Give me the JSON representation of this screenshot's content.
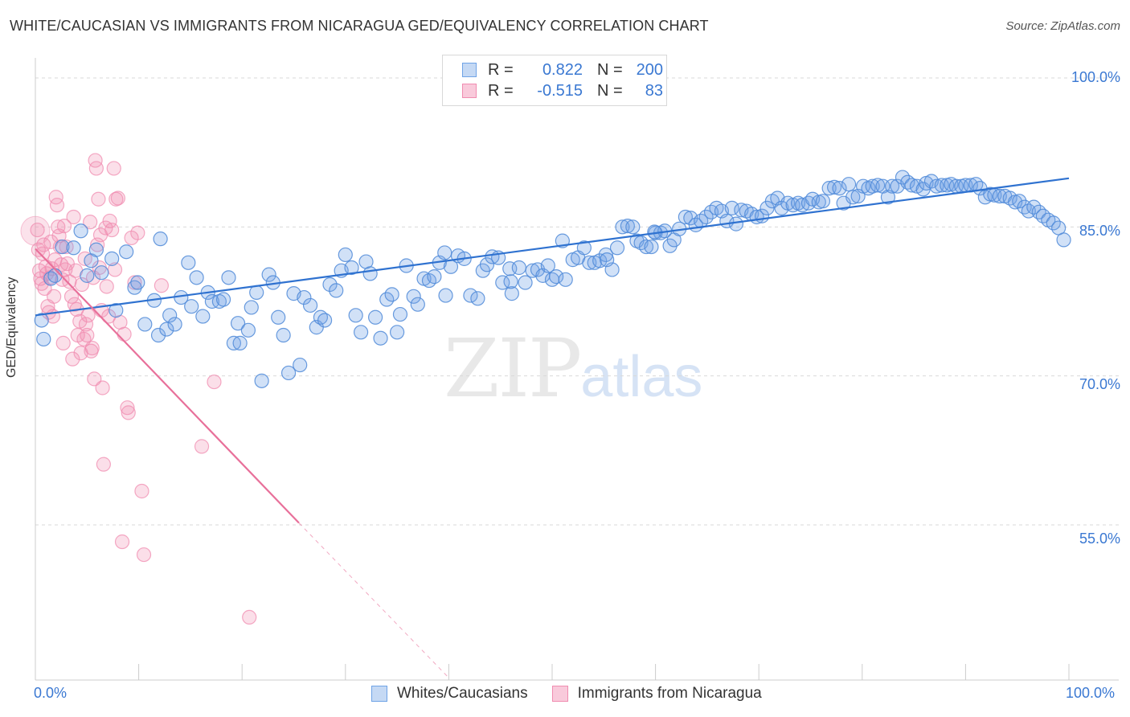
{
  "title": "WHITE/CAUCASIAN VS IMMIGRANTS FROM NICARAGUA GED/EQUIVALENCY CORRELATION CHART",
  "source": "Source: ZipAtlas.com",
  "watermark": {
    "zip": "ZIP",
    "atlas": "atlas"
  },
  "legend": {
    "rows": [
      {
        "r_label": "R =",
        "r_value": "0.822",
        "n_label": "N =",
        "n_value": "200",
        "color": "#6fa3e6"
      },
      {
        "r_label": "R =",
        "r_value": "-0.515",
        "n_label": "N =",
        "n_value": "83",
        "color": "#f08cb0"
      }
    ]
  },
  "bottom_legend": [
    {
      "label": "Whites/Caucasians",
      "color": "#6fa3e6"
    },
    {
      "label": "Immigrants from Nicaragua",
      "color": "#f08cb0"
    }
  ],
  "colors": {
    "blue": "#6fa3e6",
    "blue_line": "#2f72d0",
    "pink": "#f08cb0",
    "pink_line": "#e8709a",
    "grid": "#d9d9d9",
    "tick_text": "#3a78d2"
  },
  "chart_data": {
    "type": "scatter",
    "title": "WHITE/CAUCASIAN VS IMMIGRANTS FROM NICARAGUA GED/EQUIVALENCY CORRELATION CHART",
    "xlabel": "",
    "ylabel": "GED/Equivalency",
    "xlim": [
      0,
      100
    ],
    "ylim": [
      40,
      102
    ],
    "x_tick_labels": [
      "0.0%",
      "100.0%"
    ],
    "y_tick_labels": [
      "100.0%",
      "85.0%",
      "70.0%",
      "55.0%"
    ],
    "y_ticks": [
      100,
      85,
      70,
      55
    ],
    "grid": true,
    "legend_position": "top-center",
    "series": [
      {
        "name": "Whites/Caucasians",
        "color": "#6fa3e6",
        "trend": {
          "x": [
            0,
            100
          ],
          "y": [
            76.1,
            89.9
          ]
        },
        "points": [
          [
            0.6,
            75.6
          ],
          [
            0.8,
            73.7
          ],
          [
            1.5,
            79.8
          ],
          [
            1.9,
            80.1
          ],
          [
            2.6,
            83.0
          ],
          [
            3.7,
            82.9
          ],
          [
            4.4,
            84.6
          ],
          [
            5.0,
            80.1
          ],
          [
            5.4,
            81.6
          ],
          [
            5.9,
            82.7
          ],
          [
            6.4,
            80.4
          ],
          [
            7.4,
            81.8
          ],
          [
            7.8,
            76.6
          ],
          [
            8.8,
            82.5
          ],
          [
            9.6,
            78.9
          ],
          [
            9.9,
            79.4
          ],
          [
            10.6,
            75.2
          ],
          [
            11.5,
            77.6
          ],
          [
            11.9,
            74.1
          ],
          [
            12.1,
            83.8
          ],
          [
            12.7,
            74.7
          ],
          [
            13.0,
            76.1
          ],
          [
            13.5,
            75.2
          ],
          [
            14.1,
            77.9
          ],
          [
            14.8,
            81.4
          ],
          [
            15.1,
            77.0
          ],
          [
            15.6,
            79.9
          ],
          [
            16.2,
            76.0
          ],
          [
            16.7,
            78.4
          ],
          [
            17.1,
            77.5
          ],
          [
            17.8,
            77.5
          ],
          [
            18.2,
            77.7
          ],
          [
            18.7,
            79.9
          ],
          [
            19.2,
            73.3
          ],
          [
            19.6,
            75.3
          ],
          [
            19.8,
            73.3
          ],
          [
            20.6,
            74.6
          ],
          [
            20.9,
            76.9
          ],
          [
            21.4,
            78.4
          ],
          [
            21.9,
            69.5
          ],
          [
            22.6,
            80.2
          ],
          [
            23.0,
            79.4
          ],
          [
            23.5,
            75.9
          ],
          [
            24.0,
            74.1
          ],
          [
            24.5,
            70.3
          ],
          [
            25.0,
            78.3
          ],
          [
            25.6,
            71.1
          ],
          [
            26.0,
            77.9
          ],
          [
            26.6,
            77.1
          ],
          [
            27.2,
            74.9
          ],
          [
            27.6,
            75.9
          ],
          [
            28.0,
            75.6
          ],
          [
            28.5,
            79.2
          ],
          [
            29.1,
            78.6
          ],
          [
            29.6,
            80.6
          ],
          [
            30.0,
            82.2
          ],
          [
            30.6,
            80.9
          ],
          [
            31.0,
            76.1
          ],
          [
            31.5,
            74.4
          ],
          [
            32.0,
            81.5
          ],
          [
            32.4,
            80.3
          ],
          [
            32.9,
            75.9
          ],
          [
            33.4,
            73.8
          ],
          [
            34.0,
            77.7
          ],
          [
            34.5,
            78.2
          ],
          [
            35.0,
            74.4
          ],
          [
            35.3,
            76.2
          ],
          [
            35.9,
            81.1
          ],
          [
            36.6,
            78.0
          ],
          [
            37.0,
            77.2
          ],
          [
            37.6,
            79.8
          ],
          [
            38.1,
            79.6
          ],
          [
            38.6,
            80.0
          ],
          [
            39.1,
            81.4
          ],
          [
            39.6,
            82.4
          ],
          [
            39.7,
            78.1
          ],
          [
            40.2,
            81.0
          ],
          [
            40.9,
            82.1
          ],
          [
            41.5,
            81.8
          ],
          [
            42.1,
            78.1
          ],
          [
            42.8,
            77.8
          ],
          [
            43.3,
            80.6
          ],
          [
            43.7,
            81.2
          ],
          [
            44.2,
            82.0
          ],
          [
            44.8,
            81.9
          ],
          [
            45.2,
            79.4
          ],
          [
            45.9,
            80.8
          ],
          [
            46.1,
            78.3
          ],
          [
            46.8,
            80.9
          ],
          [
            47.4,
            79.4
          ],
          [
            48.1,
            80.6
          ],
          [
            48.6,
            80.7
          ],
          [
            49.1,
            80.1
          ],
          [
            49.6,
            81.1
          ],
          [
            50.0,
            79.7
          ],
          [
            50.4,
            80.0
          ],
          [
            51.0,
            83.6
          ],
          [
            51.3,
            79.7
          ],
          [
            52.0,
            81.7
          ],
          [
            52.5,
            81.9
          ],
          [
            53.1,
            82.9
          ],
          [
            53.6,
            81.4
          ],
          [
            54.1,
            81.4
          ],
          [
            54.6,
            81.6
          ],
          [
            55.2,
            82.2
          ],
          [
            55.8,
            80.7
          ],
          [
            56.3,
            82.9
          ],
          [
            56.8,
            85.0
          ],
          [
            57.3,
            85.1
          ],
          [
            57.8,
            85.0
          ],
          [
            58.2,
            83.6
          ],
          [
            58.6,
            83.4
          ],
          [
            59.1,
            83.0
          ],
          [
            59.6,
            83.0
          ],
          [
            60.0,
            84.4
          ],
          [
            60.5,
            84.4
          ],
          [
            60.9,
            84.6
          ],
          [
            61.4,
            83.1
          ],
          [
            61.8,
            83.7
          ],
          [
            62.3,
            84.8
          ],
          [
            62.9,
            86.0
          ],
          [
            63.4,
            85.9
          ],
          [
            63.9,
            85.2
          ],
          [
            64.4,
            85.6
          ],
          [
            64.9,
            86.0
          ],
          [
            65.4,
            86.5
          ],
          [
            65.9,
            86.9
          ],
          [
            66.4,
            86.6
          ],
          [
            66.9,
            85.6
          ],
          [
            67.4,
            86.9
          ],
          [
            67.8,
            85.3
          ],
          [
            68.3,
            86.7
          ],
          [
            68.8,
            86.6
          ],
          [
            69.3,
            86.3
          ],
          [
            69.8,
            86.0
          ],
          [
            70.3,
            86.1
          ],
          [
            70.8,
            86.9
          ],
          [
            71.3,
            87.6
          ],
          [
            71.8,
            87.9
          ],
          [
            72.2,
            86.9
          ],
          [
            72.8,
            87.4
          ],
          [
            73.3,
            87.2
          ],
          [
            73.8,
            87.4
          ],
          [
            74.2,
            87.2
          ],
          [
            74.8,
            87.4
          ],
          [
            75.2,
            87.8
          ],
          [
            75.8,
            87.5
          ],
          [
            76.2,
            87.6
          ],
          [
            76.8,
            88.9
          ],
          [
            77.3,
            89.0
          ],
          [
            77.8,
            88.9
          ],
          [
            78.2,
            87.4
          ],
          [
            78.7,
            89.3
          ],
          [
            79.1,
            88.0
          ],
          [
            79.6,
            88.1
          ],
          [
            80.1,
            89.1
          ],
          [
            80.6,
            88.9
          ],
          [
            81.0,
            89.1
          ],
          [
            81.5,
            89.2
          ],
          [
            82.0,
            89.1
          ],
          [
            82.5,
            88.0
          ],
          [
            82.9,
            89.1
          ],
          [
            83.4,
            89.1
          ],
          [
            83.9,
            90.0
          ],
          [
            84.4,
            89.5
          ],
          [
            84.8,
            89.2
          ],
          [
            85.3,
            89.1
          ],
          [
            85.9,
            88.8
          ],
          [
            86.2,
            89.4
          ],
          [
            86.7,
            89.6
          ],
          [
            87.2,
            89.1
          ],
          [
            87.7,
            89.2
          ],
          [
            88.2,
            89.2
          ],
          [
            88.6,
            89.3
          ],
          [
            89.1,
            89.1
          ],
          [
            89.6,
            89.1
          ],
          [
            90.0,
            89.2
          ],
          [
            90.5,
            89.2
          ],
          [
            91.0,
            89.3
          ],
          [
            91.4,
            88.9
          ],
          [
            91.9,
            88.0
          ],
          [
            92.4,
            88.3
          ],
          [
            92.8,
            88.2
          ],
          [
            93.3,
            88.1
          ],
          [
            93.8,
            88.1
          ],
          [
            94.3,
            87.9
          ],
          [
            94.8,
            87.5
          ],
          [
            95.2,
            87.6
          ],
          [
            95.7,
            87.0
          ],
          [
            96.1,
            86.6
          ],
          [
            96.6,
            87.0
          ],
          [
            97.1,
            86.5
          ],
          [
            97.5,
            86.1
          ],
          [
            98.0,
            85.7
          ],
          [
            98.5,
            85.4
          ],
          [
            99.0,
            84.9
          ],
          [
            99.5,
            83.7
          ],
          [
            46.0,
            79.5
          ],
          [
            55.3,
            81.7
          ],
          [
            59.9,
            84.5
          ]
        ]
      },
      {
        "name": "Immigrants from Nicaragua",
        "color": "#f08cb0",
        "trend": {
          "x": [
            0,
            25.5
          ],
          "y": [
            82.8,
            55.2
          ]
        },
        "trend_extension": {
          "x": [
            25.5,
            40
          ],
          "y": [
            55.2,
            39.6
          ]
        },
        "points": [
          [
            0.2,
            84.7
          ],
          [
            0.3,
            82.7
          ],
          [
            0.4,
            80.6
          ],
          [
            0.5,
            79.8
          ],
          [
            0.6,
            79.3
          ],
          [
            0.7,
            82.3
          ],
          [
            0.8,
            83.2
          ],
          [
            0.9,
            78.8
          ],
          [
            1.0,
            81.0
          ],
          [
            1.1,
            80.3
          ],
          [
            1.2,
            77.0
          ],
          [
            1.3,
            76.4
          ],
          [
            1.4,
            79.9
          ],
          [
            1.5,
            83.5
          ],
          [
            1.6,
            80.8
          ],
          [
            1.7,
            76.0
          ],
          [
            1.8,
            78.0
          ],
          [
            1.9,
            81.7
          ],
          [
            2.0,
            88.0
          ],
          [
            2.1,
            87.2
          ],
          [
            2.2,
            85.0
          ],
          [
            2.3,
            84.1
          ],
          [
            2.4,
            83.0
          ],
          [
            2.5,
            81.2
          ],
          [
            2.6,
            79.7
          ],
          [
            2.7,
            73.3
          ],
          [
            2.8,
            85.1
          ],
          [
            2.9,
            80.7
          ],
          [
            3.0,
            83.0
          ],
          [
            3.1,
            81.3
          ],
          [
            3.3,
            79.5
          ],
          [
            3.5,
            78.0
          ],
          [
            3.6,
            71.7
          ],
          [
            3.7,
            86.0
          ],
          [
            3.8,
            77.2
          ],
          [
            3.9,
            80.6
          ],
          [
            4.0,
            76.7
          ],
          [
            4.1,
            74.1
          ],
          [
            4.3,
            75.5
          ],
          [
            4.4,
            72.3
          ],
          [
            4.5,
            79.2
          ],
          [
            4.7,
            73.7
          ],
          [
            4.8,
            81.8
          ],
          [
            4.9,
            75.2
          ],
          [
            5.0,
            74.1
          ],
          [
            5.1,
            76.1
          ],
          [
            5.3,
            85.5
          ],
          [
            5.4,
            72.5
          ],
          [
            5.5,
            72.8
          ],
          [
            5.6,
            79.9
          ],
          [
            5.7,
            69.7
          ],
          [
            5.8,
            91.7
          ],
          [
            5.9,
            90.9
          ],
          [
            6.0,
            83.2
          ],
          [
            6.1,
            87.8
          ],
          [
            6.2,
            80.9
          ],
          [
            6.3,
            84.2
          ],
          [
            6.4,
            76.6
          ],
          [
            6.5,
            68.8
          ],
          [
            6.6,
            61.1
          ],
          [
            6.8,
            84.9
          ],
          [
            6.9,
            79.0
          ],
          [
            7.1,
            76.0
          ],
          [
            7.2,
            85.6
          ],
          [
            7.4,
            84.7
          ],
          [
            7.6,
            90.9
          ],
          [
            7.7,
            80.7
          ],
          [
            7.8,
            87.8
          ],
          [
            8.0,
            87.9
          ],
          [
            8.2,
            75.4
          ],
          [
            8.4,
            53.3
          ],
          [
            8.6,
            74.2
          ],
          [
            8.9,
            66.8
          ],
          [
            9.0,
            66.3
          ],
          [
            9.3,
            83.9
          ],
          [
            9.6,
            79.4
          ],
          [
            9.9,
            84.4
          ],
          [
            10.3,
            58.4
          ],
          [
            10.5,
            52.0
          ],
          [
            12.2,
            79.1
          ],
          [
            16.1,
            62.9
          ],
          [
            17.3,
            69.4
          ],
          [
            20.7,
            45.7
          ]
        ]
      }
    ]
  }
}
